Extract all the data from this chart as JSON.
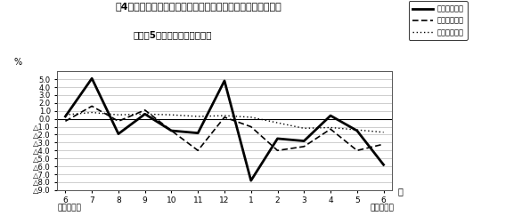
{
  "title_line1": "第4図　　賣金、労働時間、常用雇用指数対前年同月比の推移",
  "title_line2": "（規樧5人以上　調査産業計）",
  "ylabel": "%",
  "xlabel_right": "月",
  "footer_left": "平成２０年",
  "footer_right": "平成２１年",
  "xtick_labels": [
    "6",
    "7",
    "8",
    "9",
    "10",
    "11",
    "12",
    "1",
    "2",
    "3",
    "4",
    "5",
    "6"
  ],
  "ylim_min": -9.0,
  "ylim_max": 6.0,
  "ytick_values": [
    5.0,
    4.0,
    3.0,
    2.0,
    1.0,
    0.0,
    -1.0,
    -2.0,
    -3.0,
    -4.0,
    -5.0,
    -6.0,
    -7.0,
    -8.0,
    -9.0
  ],
  "series": {
    "wage": {
      "label": "現金給与総額",
      "color": "#000000",
      "linewidth": 2.0,
      "linestyle": "solid",
      "values": [
        0.3,
        5.1,
        -1.9,
        0.6,
        -1.5,
        -1.8,
        4.8,
        -7.8,
        -2.5,
        -2.8,
        0.4,
        -1.5,
        -5.8
      ]
    },
    "hours": {
      "label": "総実労働時間",
      "color": "#000000",
      "linewidth": 1.2,
      "linestyle": "dashed",
      "values": [
        -0.3,
        1.6,
        -0.3,
        1.1,
        -1.5,
        -4.0,
        0.2,
        -1.0,
        -4.0,
        -3.5,
        -1.3,
        -4.0,
        -3.2
      ]
    },
    "employment": {
      "label": "常用雇用指数",
      "color": "#000000",
      "linewidth": 1.0,
      "linestyle": "dotted",
      "values": [
        0.5,
        0.8,
        0.5,
        0.6,
        0.5,
        0.3,
        0.4,
        0.2,
        -0.5,
        -1.2,
        -1.1,
        -1.4,
        -1.7
      ]
    }
  },
  "legend_labels": [
    "現金給与総額",
    "総実労働時間",
    "常用雇用指数"
  ],
  "background_color": "#ffffff",
  "plot_bg_color": "#ffffff",
  "grid_color": "#aaaaaa"
}
